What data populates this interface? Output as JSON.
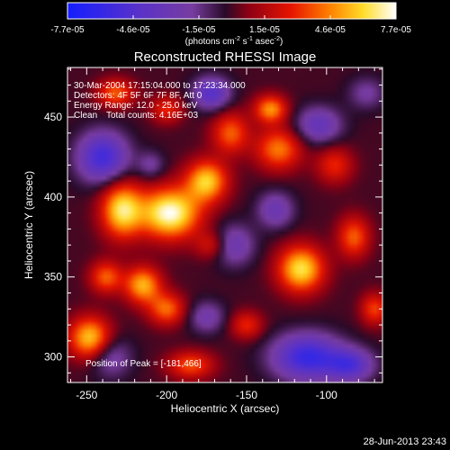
{
  "chart_data": {
    "type": "heatmap",
    "title": "Reconstructed RHESSI Image",
    "xlabel": "Heliocentric X (arcsec)",
    "ylabel": "Heliocentric Y (arcsec)",
    "xlim": [
      -262,
      -65
    ],
    "ylim": [
      284,
      481
    ],
    "x_ticks": [
      -250,
      -200,
      -150,
      -100
    ],
    "y_ticks": [
      300,
      350,
      400,
      450
    ],
    "x_tick_labels": [
      "-250",
      "-200",
      "-150",
      "-100"
    ],
    "y_tick_labels": [
      "300",
      "350",
      "400",
      "450"
    ],
    "colorbar": {
      "range": [
        -7.7e-05,
        7.7e-05
      ],
      "tick_labels": [
        "-7.7e-05",
        "-4.6e-05",
        "-1.5e-05",
        "1.5e-05",
        "4.6e-05",
        "7.7e-05"
      ],
      "unit_label": "(photons cm^-2 s^-1 asec^-2)",
      "colormap": "blue-purple-red-yellow-white"
    },
    "annotations": {
      "time_range": "30-Mar-2004 17:15:04.000 to 17:23:34.000",
      "detectors": "Detectors: 4F 5F 6F 7F 8F, Att 0",
      "energy_range": "Energy Range: 12.0 - 25.0 keV",
      "algorithm": "Clean",
      "total_counts": "Total counts: 4.16E+03",
      "peak_position": "Position of Peak = [-181,466]"
    },
    "peak": {
      "x": -181,
      "y": 466
    },
    "blobs": [
      {
        "x": -198,
        "y": 390,
        "amp": 7.7e-05,
        "sx": 13,
        "sy": 11
      },
      {
        "x": -228,
        "y": 392,
        "amp": 6.5e-05,
        "sx": 9,
        "sy": 12
      },
      {
        "x": -175,
        "y": 410,
        "amp": 6e-05,
        "sx": 9,
        "sy": 9
      },
      {
        "x": -215,
        "y": 345,
        "amp": 5.5e-05,
        "sx": 8,
        "sy": 8
      },
      {
        "x": -238,
        "y": 350,
        "amp": 4e-05,
        "sx": 7,
        "sy": 7
      },
      {
        "x": -248,
        "y": 312,
        "amp": 6e-05,
        "sx": 9,
        "sy": 9
      },
      {
        "x": -200,
        "y": 330,
        "amp": 4.2e-05,
        "sx": 8,
        "sy": 7
      },
      {
        "x": -232,
        "y": 465,
        "amp": 4e-05,
        "sx": 8,
        "sy": 6
      },
      {
        "x": -200,
        "y": 455,
        "amp": 3e-05,
        "sx": 7,
        "sy": 6
      },
      {
        "x": -160,
        "y": 440,
        "amp": 4e-05,
        "sx": 8,
        "sy": 9
      },
      {
        "x": -185,
        "y": 295,
        "amp": 3.8e-05,
        "sx": 10,
        "sy": 6
      },
      {
        "x": -116,
        "y": 355,
        "amp": 6.5e-05,
        "sx": 10,
        "sy": 10
      },
      {
        "x": -130,
        "y": 430,
        "amp": 4.5e-05,
        "sx": 10,
        "sy": 9
      },
      {
        "x": -135,
        "y": 455,
        "amp": 5e-05,
        "sx": 7,
        "sy": 6
      },
      {
        "x": -95,
        "y": 420,
        "amp": 3e-05,
        "sx": 8,
        "sy": 8
      },
      {
        "x": -83,
        "y": 375,
        "amp": 4e-05,
        "sx": 7,
        "sy": 9
      },
      {
        "x": -70,
        "y": 330,
        "amp": 3.5e-05,
        "sx": 6,
        "sy": 7
      },
      {
        "x": -150,
        "y": 320,
        "amp": 3e-05,
        "sx": 7,
        "sy": 6
      },
      {
        "x": -172,
        "y": 370,
        "amp": 2.5e-05,
        "sx": 7,
        "sy": 6
      },
      {
        "x": -240,
        "y": 425,
        "amp": -5.5e-05,
        "sx": 11,
        "sy": 11
      },
      {
        "x": -172,
        "y": 465,
        "amp": -4.5e-05,
        "sx": 8,
        "sy": 7
      },
      {
        "x": -235,
        "y": 300,
        "amp": -2.5e-05,
        "sx": 9,
        "sy": 9
      },
      {
        "x": -158,
        "y": 370,
        "amp": -3e-05,
        "sx": 9,
        "sy": 9
      },
      {
        "x": -112,
        "y": 300,
        "amp": -6e-05,
        "sx": 15,
        "sy": 10
      },
      {
        "x": -85,
        "y": 295,
        "amp": -4.5e-05,
        "sx": 10,
        "sy": 7
      },
      {
        "x": -105,
        "y": 445,
        "amp": -3.5e-05,
        "sx": 10,
        "sy": 8
      },
      {
        "x": -132,
        "y": 392,
        "amp": -3e-05,
        "sx": 8,
        "sy": 8
      },
      {
        "x": -75,
        "y": 465,
        "amp": -2e-05,
        "sx": 8,
        "sy": 7
      },
      {
        "x": -210,
        "y": 420,
        "amp": -2e-05,
        "sx": 6,
        "sy": 6
      },
      {
        "x": -175,
        "y": 325,
        "amp": -2.5e-05,
        "sx": 8,
        "sy": 7
      }
    ],
    "grid": false
  },
  "footer": {
    "timestamp": "28-Jun-2013 23:43"
  }
}
